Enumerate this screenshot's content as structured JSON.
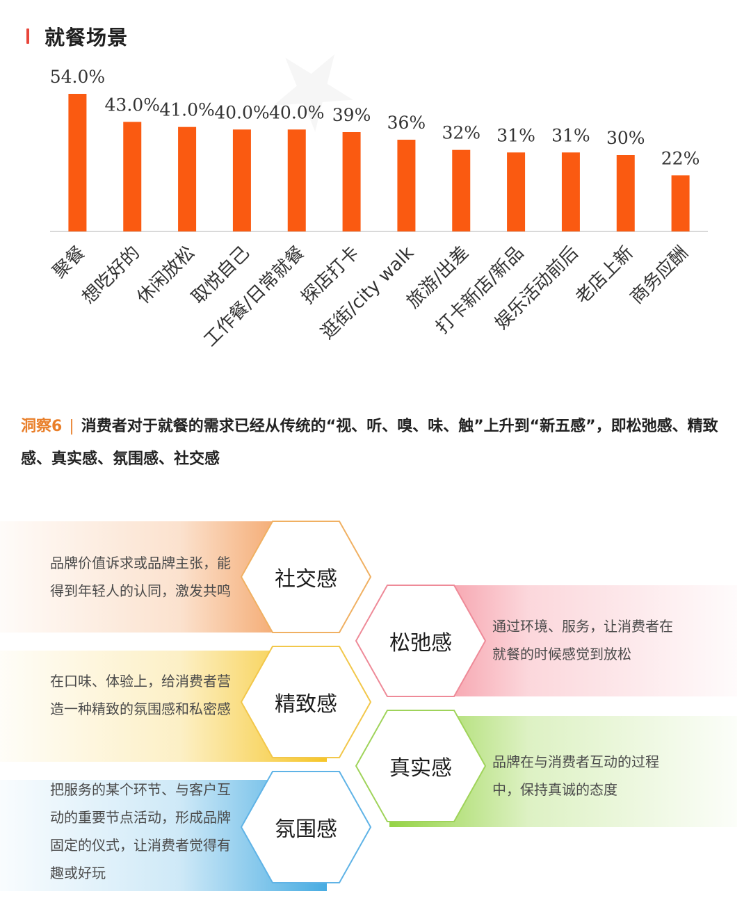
{
  "section": {
    "title": "就餐场景"
  },
  "chart_data": {
    "type": "bar",
    "categories": [
      "聚餐",
      "想吃好的",
      "休闲放松",
      "取悦自己",
      "工作餐/日常就餐",
      "探店打卡",
      "逛街/city walk",
      "旅游/出差",
      "打卡新店/新品",
      "娱乐活动前后",
      "老店上新",
      "商务应酬"
    ],
    "values": [
      54,
      43,
      41,
      40,
      40,
      39,
      36,
      32,
      31,
      31,
      30,
      22
    ],
    "data_labels": [
      "54.0%",
      "43.0%",
      "41.0%",
      "40.0%",
      "40.0%",
      "39%",
      "36%",
      "32%",
      "31%",
      "31%",
      "30%",
      "22%"
    ],
    "ylim": [
      0,
      60
    ],
    "grid": false,
    "bar_color": "#fa5a11"
  },
  "insight": {
    "label": "洞察6",
    "separator": "|",
    "text": "消费者对于就餐的需求已经从传统的“视、听、嗅、味、触”上升到“新五感”，即松弛感、精致感、真实感、氛围感、社交感"
  },
  "senses": {
    "social": {
      "title": "社交感",
      "desc": "品牌价值诉求或品牌主张，能得到年轻人的认同，激发共鸣"
    },
    "relax": {
      "title": "松弛感",
      "desc": "通过环境、服务，让消费者在就餐的时候感觉到放松"
    },
    "refined": {
      "title": "精致感",
      "desc": "在口味、体验上，给消费者营造一种精致的氛围感和私密感"
    },
    "real": {
      "title": "真实感",
      "desc": "品牌在与消费者互动的过程中，保持真诚的态度"
    },
    "atmosphere": {
      "title": "氛围感",
      "desc": "把服务的某个环节、与客户互动的重要节点活动，形成品牌固定的仪式，让消费者觉得有趣或好玩"
    }
  },
  "colors": {
    "accent_red": "#e8453a",
    "accent_orange": "#e97f2a",
    "band_social": "#f08a3c",
    "band_relax": "#f37b8a",
    "band_refined": "#f5c21b",
    "band_real": "#8fd13a",
    "band_atmosphere": "#3da7e0"
  }
}
